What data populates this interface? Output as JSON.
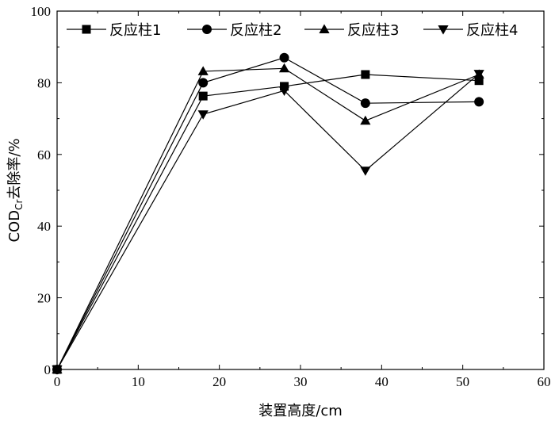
{
  "chart_data": {
    "type": "line",
    "title": "",
    "xlabel": "装置高度/cm",
    "ylabel": {
      "main": "COD",
      "sub": "Cr",
      "rest": "去除率/%"
    },
    "xlim": [
      0,
      60
    ],
    "ylim": [
      0,
      100
    ],
    "xticks": [
      "0",
      "10",
      "20",
      "30",
      "40",
      "50",
      "60"
    ],
    "yticks": [
      "0",
      "20",
      "40",
      "60",
      "80",
      "100"
    ],
    "grid": false,
    "legend_position": "top",
    "series": [
      {
        "name": "反应柱1",
        "marker": "square",
        "x": [
          0,
          18,
          28,
          38,
          52
        ],
        "y": [
          0,
          76.3,
          79.0,
          82.3,
          80.6
        ]
      },
      {
        "name": "反应柱2",
        "marker": "circle",
        "x": [
          0,
          18,
          28,
          38,
          52
        ],
        "y": [
          0,
          80.0,
          87.0,
          74.3,
          74.7
        ]
      },
      {
        "name": "反应柱3",
        "marker": "triangle-up",
        "x": [
          0,
          18,
          28,
          38,
          52
        ],
        "y": [
          0,
          83.2,
          84.0,
          69.4,
          82.3
        ]
      },
      {
        "name": "反应柱4",
        "marker": "triangle-down",
        "x": [
          0,
          18,
          28,
          38,
          52
        ],
        "y": [
          0,
          71.2,
          77.8,
          55.5,
          82.5
        ]
      }
    ]
  }
}
